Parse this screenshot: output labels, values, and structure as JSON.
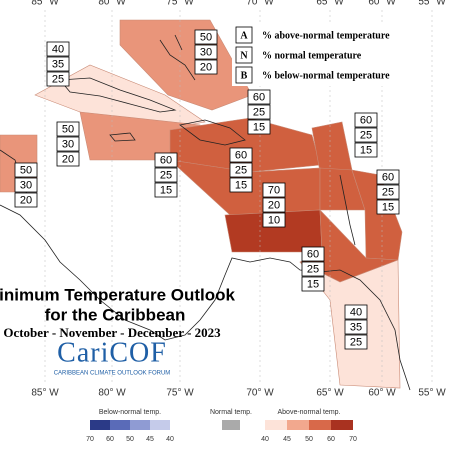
{
  "longitudes_top": [
    "85° W",
    "80° W",
    "75° W",
    "70° W",
    "65° W",
    "60° W",
    "55° W"
  ],
  "longitudes_bottom": [
    "85° W",
    "80° W",
    "75° W",
    "70° W",
    "65° W",
    "60° W",
    "55° W"
  ],
  "legend": {
    "rows": [
      {
        "key": "A",
        "text": "% above-normal temperature"
      },
      {
        "key": "N",
        "text": "% normal temperature"
      },
      {
        "key": "B",
        "text": "% below-normal temperature"
      }
    ]
  },
  "regions": [
    {
      "values": [
        50,
        30,
        20
      ]
    },
    {
      "values": [
        40,
        35,
        25
      ]
    },
    {
      "values": [
        50,
        30,
        20
      ]
    },
    {
      "values": [
        50,
        30,
        20
      ]
    },
    {
      "values": [
        60,
        25,
        15
      ]
    },
    {
      "values": [
        60,
        25,
        15
      ]
    },
    {
      "values": [
        60,
        25,
        15
      ]
    },
    {
      "values": [
        60,
        25,
        15
      ]
    },
    {
      "values": [
        60,
        25,
        15
      ]
    },
    {
      "values": [
        70,
        20,
        10
      ]
    },
    {
      "values": [
        60,
        25,
        15
      ]
    },
    {
      "values": [
        40,
        35,
        25
      ]
    }
  ],
  "title": {
    "line1": "Minimum Temperature Outlook",
    "line2": "for the Caribbean",
    "period": "October - November - December - 2023"
  },
  "logo": {
    "name": "CariCOF",
    "subtitle": "CARIBBEAN CLIMATE OUTLOOK FORUM"
  },
  "colorbar": {
    "below": {
      "label": "Below-normal temp.",
      "ticks": [
        70,
        60,
        50,
        45,
        40
      ]
    },
    "normal": {
      "label": "Normal temp."
    },
    "above": {
      "label": "Above-normal temp.",
      "ticks": [
        40,
        45,
        50,
        60,
        70
      ]
    }
  }
}
